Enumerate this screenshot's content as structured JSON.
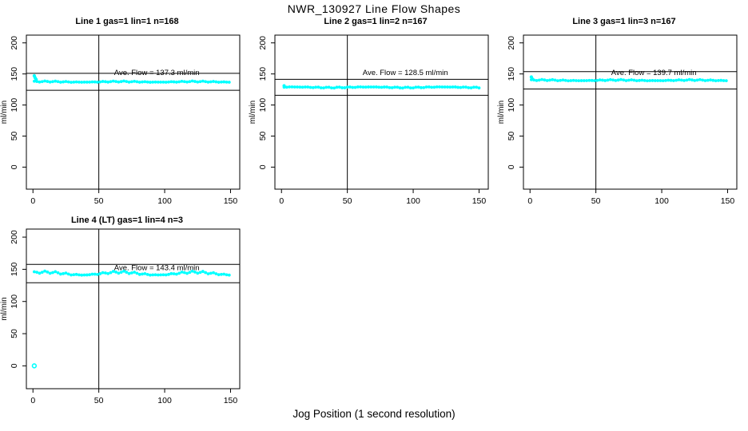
{
  "figure": {
    "title": "NWR_130927  Line Flow Shapes",
    "xlabel": "Jog Position (1 second resolution)",
    "background": "#FFFFFF",
    "line_color": "#000000",
    "marker_color": "#00FFFF"
  },
  "chart_data": [
    {
      "type": "scatter",
      "title": "Line 1 gas=1 lin=1 n=168",
      "ylabel": "ml/min",
      "xlabel": "",
      "x_ticks": [
        0,
        50,
        100,
        150
      ],
      "y_ticks": [
        0,
        50,
        100,
        150,
        200
      ],
      "xlim": [
        -5,
        157
      ],
      "ylim": [
        -35.5,
        212.5
      ],
      "grid": false,
      "avg_flow": 137.3,
      "avg_flow_label": "Ave. Flow =  137.3  ml/min",
      "label_pos": [
        94,
        153
      ],
      "ref_lines": [
        151.0,
        123.6
      ],
      "vline_x": 50,
      "series": {
        "name": "line-1-flow",
        "x_start": 1,
        "x_end": 150,
        "x_step": 2,
        "base": 137.3,
        "noise_amplitude": 0.8,
        "wave_amplitude": 0.5
      },
      "extra_points": [
        {
          "x": 1.0,
          "y": 147,
          "open": false
        },
        {
          "x": 1.6,
          "y": 144,
          "open": false
        },
        {
          "x": 2.4,
          "y": 141,
          "open": false
        }
      ]
    },
    {
      "type": "scatter",
      "title": "Line 2 gas=1 lin=2 n=167",
      "ylabel": "ml/min",
      "xlabel": "",
      "x_ticks": [
        0,
        50,
        100,
        150
      ],
      "y_ticks": [
        0,
        50,
        100,
        150,
        200
      ],
      "xlim": [
        -5,
        157
      ],
      "ylim": [
        -35.5,
        212.5
      ],
      "grid": false,
      "avg_flow": 128.5,
      "avg_flow_label": "Ave. Flow =  128.5  ml/min",
      "label_pos": [
        94,
        153
      ],
      "ref_lines": [
        141.4,
        115.7
      ],
      "vline_x": 50,
      "series": {
        "name": "line-2-flow",
        "x_start": 2,
        "x_end": 150,
        "x_step": 2,
        "base": 128.5,
        "noise_amplitude": 0.8,
        "wave_amplitude": 0.5
      },
      "extra_points": [
        {
          "x": 2.0,
          "y": 131,
          "open": false
        }
      ]
    },
    {
      "type": "scatter",
      "title": "Line 3 gas=1 lin=3 n=167",
      "ylabel": "ml/min",
      "xlabel": "",
      "x_ticks": [
        0,
        50,
        100,
        150
      ],
      "y_ticks": [
        0,
        50,
        100,
        150,
        200
      ],
      "xlim": [
        -5,
        157
      ],
      "ylim": [
        -35.5,
        212.5
      ],
      "grid": false,
      "avg_flow": 139.7,
      "avg_flow_label": "Ave. Flow =  139.7  ml/min",
      "label_pos": [
        94,
        153
      ],
      "ref_lines": [
        153.7,
        125.7
      ],
      "vline_x": 50,
      "series": {
        "name": "line-3-flow",
        "x_start": 1,
        "x_end": 150,
        "x_step": 2,
        "base": 139.7,
        "noise_amplitude": 0.8,
        "wave_amplitude": 0.5
      },
      "extra_points": [
        {
          "x": 1.0,
          "y": 145,
          "open": false
        },
        {
          "x": 1.7,
          "y": 142,
          "open": false
        }
      ]
    },
    {
      "type": "scatter",
      "title": "Line 4 (LT) gas=1 lin=4 n=3",
      "ylabel": "ml/min",
      "xlabel": "",
      "x_ticks": [
        0,
        50,
        100,
        150
      ],
      "y_ticks": [
        0,
        50,
        100,
        150,
        200
      ],
      "xlim": [
        -5,
        157
      ],
      "ylim": [
        -35.5,
        212.5
      ],
      "grid": false,
      "avg_flow": 143.4,
      "avg_flow_label": "Ave. Flow =  143.4  ml/min",
      "label_pos": [
        94,
        153
      ],
      "ref_lines": [
        157.7,
        129.1
      ],
      "vline_x": 50,
      "series": {
        "name": "line-4-flow",
        "x_start": 1,
        "x_end": 150,
        "x_step": 2,
        "base": 143.4,
        "noise_amplitude": 1.6,
        "wave_amplitude": 2.2
      },
      "extra_points": [
        {
          "x": 1.0,
          "y": 0,
          "open": true
        }
      ]
    }
  ]
}
